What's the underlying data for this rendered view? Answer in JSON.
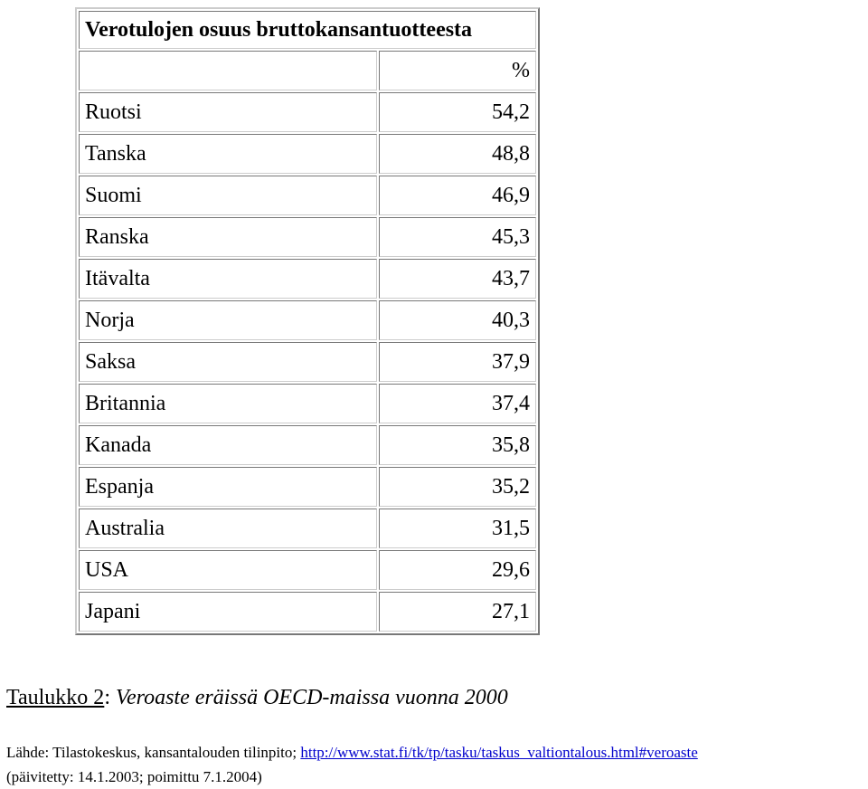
{
  "table": {
    "title": "Verotulojen osuus bruttokansantuotteesta",
    "unit": "%",
    "rows": [
      [
        "Ruotsi",
        "54,2"
      ],
      [
        "Tanska",
        "48,8"
      ],
      [
        "Suomi",
        "46,9"
      ],
      [
        "Ranska",
        "45,3"
      ],
      [
        "Itävalta",
        "43,7"
      ],
      [
        "Norja",
        "40,3"
      ],
      [
        "Saksa",
        "37,9"
      ],
      [
        "Britannia",
        "37,4"
      ],
      [
        "Kanada",
        "35,8"
      ],
      [
        "Espanja",
        "35,2"
      ],
      [
        "Australia",
        "31,5"
      ],
      [
        "USA",
        "29,6"
      ],
      [
        "Japani",
        "27,1"
      ]
    ]
  },
  "caption": {
    "label": "Taulukko 2",
    "separator": ":",
    "text": "Veroaste eräissä OECD-maissa vuonna 2000"
  },
  "source": {
    "text": "Lähde: Tilastokeskus, kansantalouden tilinpito;",
    "link": "http://www.stat.fi/tk/tp/tasku/taskus_valtiontalous.html#veroaste",
    "updated": "(päivitetty: 14.1.2003; poimittu 7.1.2004)"
  }
}
